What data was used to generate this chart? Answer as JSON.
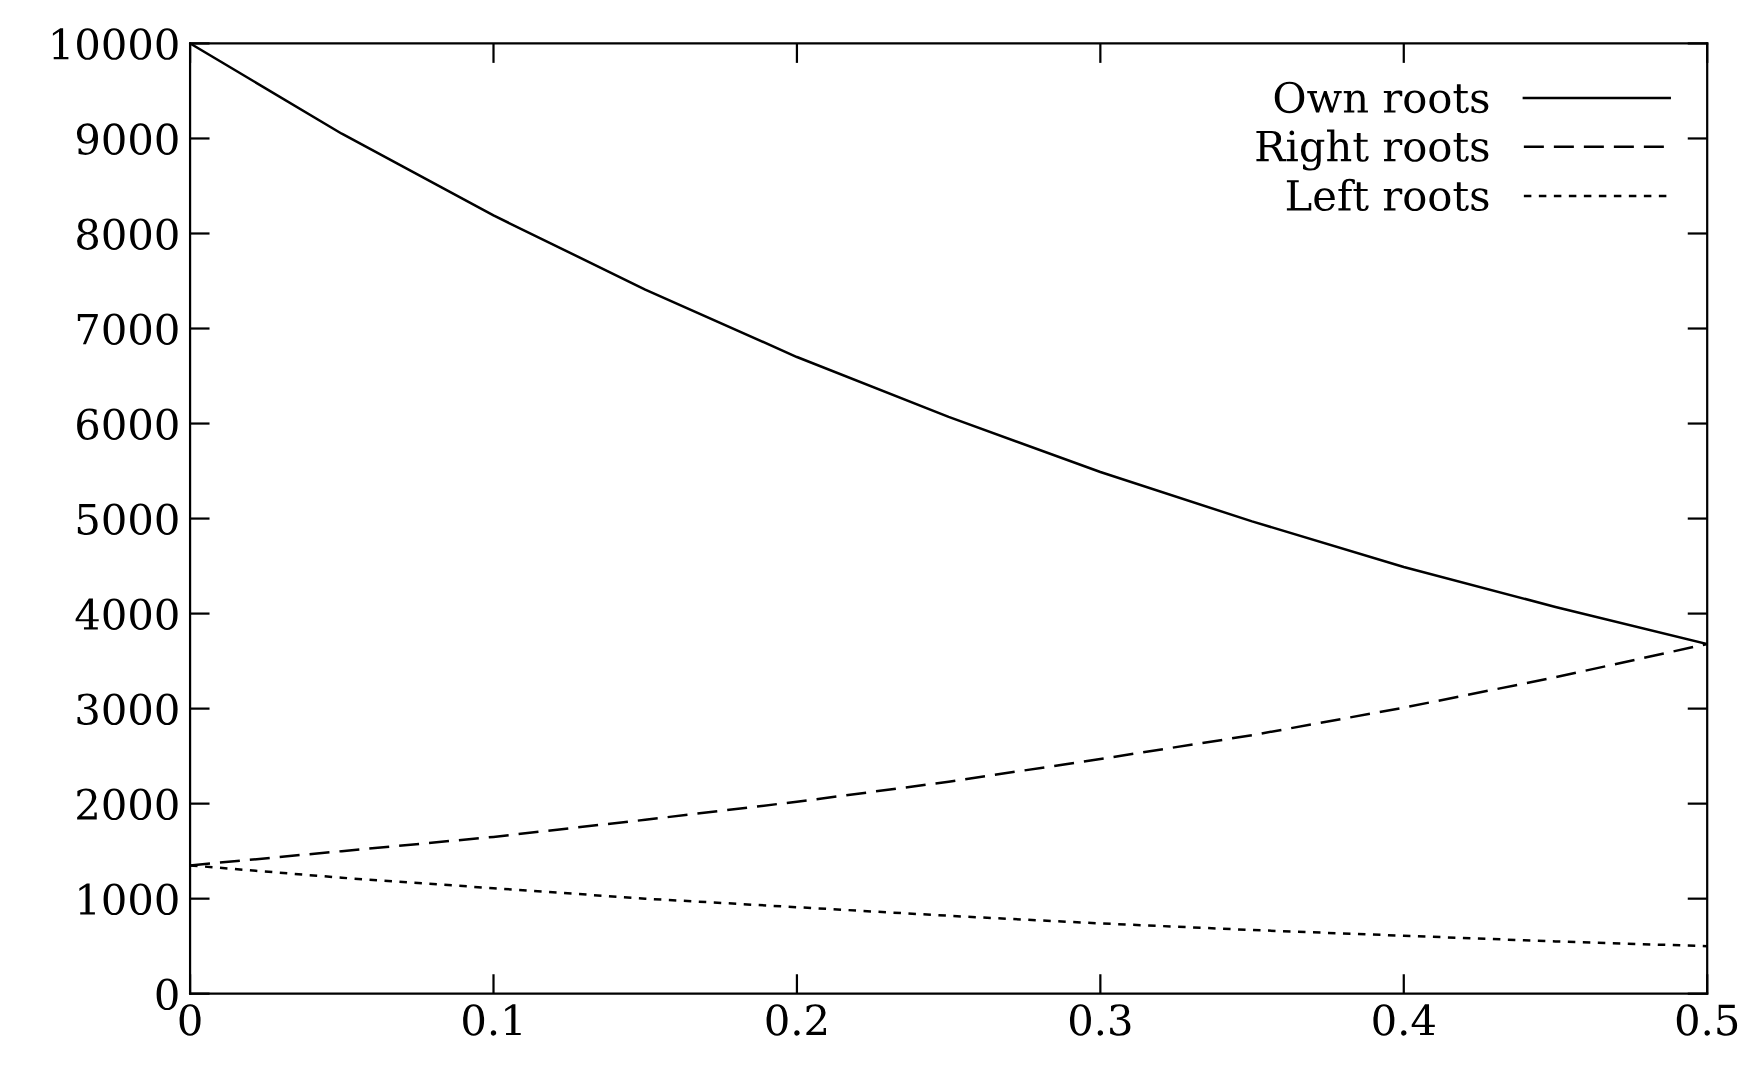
{
  "chart_data": {
    "type": "line",
    "x": [
      0,
      0.05,
      0.1,
      0.15,
      0.2,
      0.25,
      0.3,
      0.35,
      0.4,
      0.45,
      0.5
    ],
    "series": [
      {
        "name": "Own roots",
        "color": "#000000",
        "line_style": "solid",
        "values": [
          10000,
          9050,
          8190,
          7410,
          6700,
          6070,
          5490,
          4970,
          4490,
          4070,
          3680
        ]
      },
      {
        "name": "Right roots",
        "color": "#000000",
        "line_style": "dashed",
        "values": [
          1350,
          1500,
          1650,
          1830,
          2020,
          2230,
          2470,
          2720,
          3010,
          3330,
          3680
        ]
      },
      {
        "name": "Left roots",
        "color": "#000000",
        "line_style": "dotted",
        "values": [
          1350,
          1220,
          1110,
          1000,
          910,
          820,
          740,
          670,
          610,
          550,
          500
        ]
      }
    ],
    "xlim": [
      0,
      0.5
    ],
    "xticks": [
      0,
      0.1,
      0.2,
      0.3,
      0.4,
      0.5
    ],
    "ylim": [
      0,
      10000
    ],
    "yticks": [
      0,
      1000,
      2000,
      3000,
      4000,
      5000,
      6000,
      7000,
      8000,
      9000,
      10000
    ],
    "grid": false,
    "legend": "top right",
    "marker": "none"
  }
}
